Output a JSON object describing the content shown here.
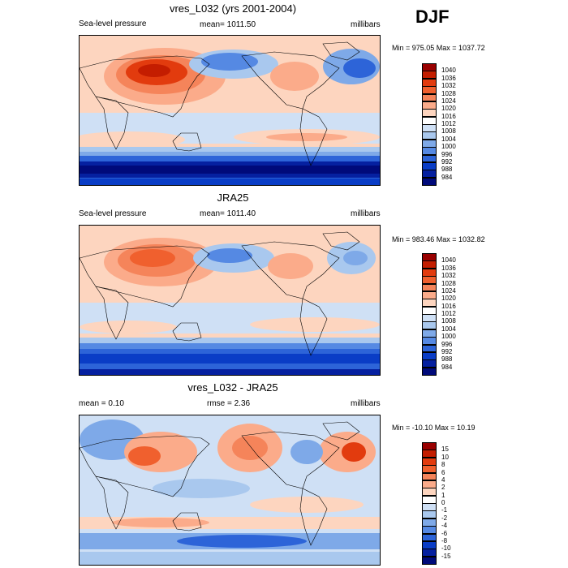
{
  "season": "DJF",
  "panels": [
    {
      "title": "vres_L032 (yrs 2001-2004)",
      "left": "Sea-level pressure",
      "center": "mean= 1011.50",
      "right": "millibars",
      "minmax": "Min = 975.05 Max = 1037.72",
      "levels": [
        "1040",
        "1036",
        "1032",
        "1028",
        "1024",
        "1020",
        "1016",
        "1012",
        "1008",
        "1004",
        "1000",
        "996",
        "992",
        "988",
        "984"
      ],
      "colors": [
        "#990000",
        "#c41d00",
        "#e23b0e",
        "#f0602e",
        "#f5845a",
        "#fbab8a",
        "#fdd5bf",
        "#ffffff",
        "#cfe0f5",
        "#a9c8ee",
        "#7ea9e8",
        "#5589e3",
        "#2d64d8",
        "#0a3dc6",
        "#0520a0",
        "#000a7a"
      ]
    },
    {
      "title": "JRA25",
      "left": "Sea-level pressure",
      "center": "mean= 1011.40",
      "right": "millibars",
      "minmax": "Min = 983.46 Max = 1032.82",
      "levels": [
        "1040",
        "1036",
        "1032",
        "1028",
        "1024",
        "1020",
        "1016",
        "1012",
        "1008",
        "1004",
        "1000",
        "996",
        "992",
        "988",
        "984"
      ],
      "colors": [
        "#990000",
        "#c41d00",
        "#e23b0e",
        "#f0602e",
        "#f5845a",
        "#fbab8a",
        "#fdd5bf",
        "#ffffff",
        "#cfe0f5",
        "#a9c8ee",
        "#7ea9e8",
        "#5589e3",
        "#2d64d8",
        "#0a3dc6",
        "#0520a0",
        "#000a7a"
      ]
    },
    {
      "title": "vres_L032 - JRA25",
      "left": "mean =   0.10",
      "center": "rmse =   2.36",
      "right": "millibars",
      "minmax": "Min = -10.10 Max =  10.19",
      "levels": [
        "15",
        "10",
        "8",
        "6",
        "4",
        "2",
        "1",
        "0",
        "-1",
        "-2",
        "-4",
        "-6",
        "-8",
        "-10",
        "-15"
      ],
      "colors": [
        "#990000",
        "#c41d00",
        "#e23b0e",
        "#f0602e",
        "#f5845a",
        "#fbab8a",
        "#fdd5bf",
        "#ffffff",
        "#cfe0f5",
        "#a9c8ee",
        "#7ea9e8",
        "#5589e3",
        "#2d64d8",
        "#0a3dc6",
        "#0520a0",
        "#000a7a"
      ]
    }
  ]
}
